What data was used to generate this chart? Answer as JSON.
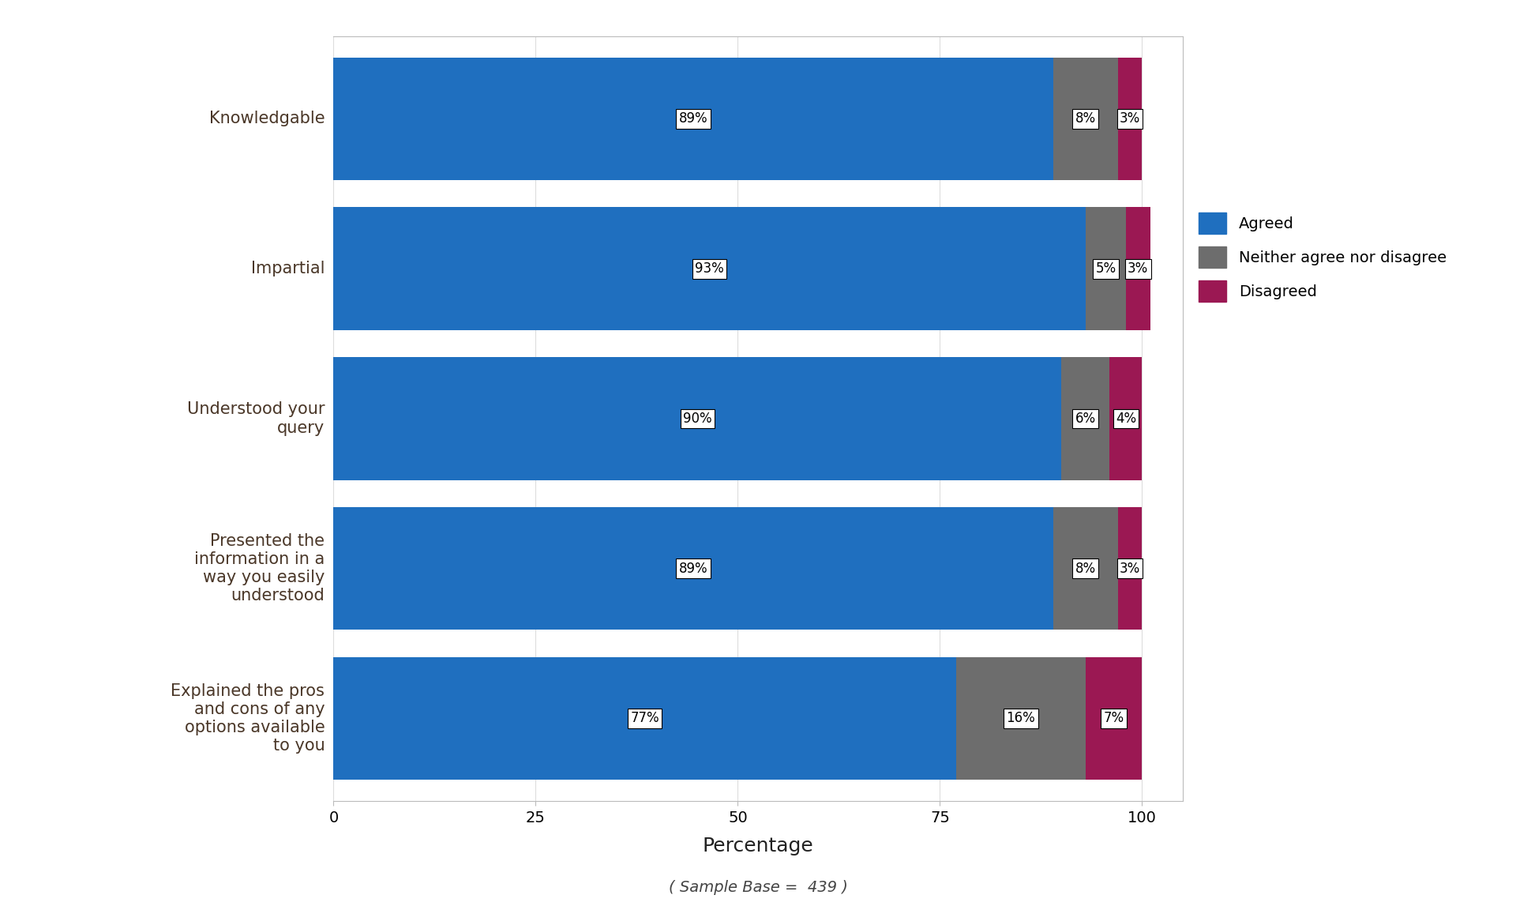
{
  "categories": [
    "Knowledgable",
    "Impartial",
    "Understood your\nquery",
    "Presented the\ninformation in a\nway you easily\nunderstood",
    "Explained the pros\nand cons of any\noptions available\nto you"
  ],
  "agreed": [
    89,
    93,
    90,
    89,
    77
  ],
  "neither": [
    8,
    5,
    6,
    8,
    16
  ],
  "disagreed": [
    3,
    3,
    4,
    3,
    7
  ],
  "agreed_color": "#1F6FBF",
  "neither_color": "#6D6D6D",
  "disagreed_color": "#9B1853",
  "legend_labels": [
    "Agreed",
    "Neither agree nor disagree",
    "Disagreed"
  ],
  "xlabel": "Percentage",
  "sample_base": "( Sample Base =  439 )",
  "xlim": [
    0,
    105
  ],
  "xticks": [
    0,
    25,
    50,
    75,
    100
  ],
  "bar_height": 0.82,
  "figsize": [
    19.2,
    11.52
  ],
  "dpi": 100,
  "label_fontsize": 15,
  "tick_fontsize": 14,
  "xlabel_fontsize": 18,
  "annotation_fontsize": 12,
  "legend_fontsize": 14,
  "sample_fontsize": 14,
  "ytick_color": "#4A3728",
  "xlabel_color": "#222222",
  "background_color": "#FFFFFF"
}
